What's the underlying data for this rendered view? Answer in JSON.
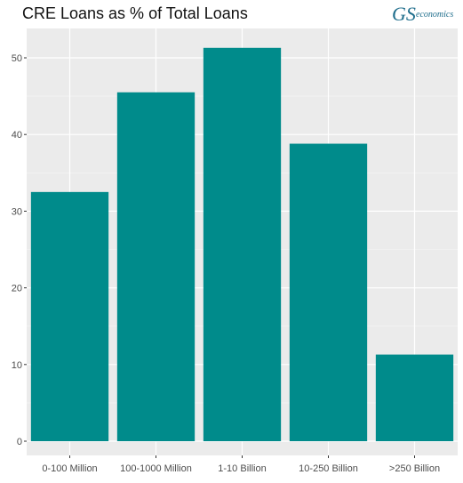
{
  "chart_data": {
    "type": "bar",
    "title": "CRE Loans as % of Total Loans",
    "xlabel": "",
    "ylabel": "",
    "categories": [
      "0-100 Million",
      "100-1000 Million",
      "1-10 Billion",
      "10-250 Billion",
      ">250 Billion"
    ],
    "values": [
      32.5,
      45.5,
      51.3,
      38.8,
      11.3
    ],
    "ylim": [
      0,
      53.5
    ],
    "yticks": [
      0,
      10,
      20,
      30,
      40,
      50
    ],
    "grid": true,
    "legend": "none",
    "bar_color": "#008B8B",
    "panel_color": "#EBEBEB"
  },
  "logo": {
    "monogram": "GS",
    "text": "economics",
    "color": "#1f6e8c"
  }
}
